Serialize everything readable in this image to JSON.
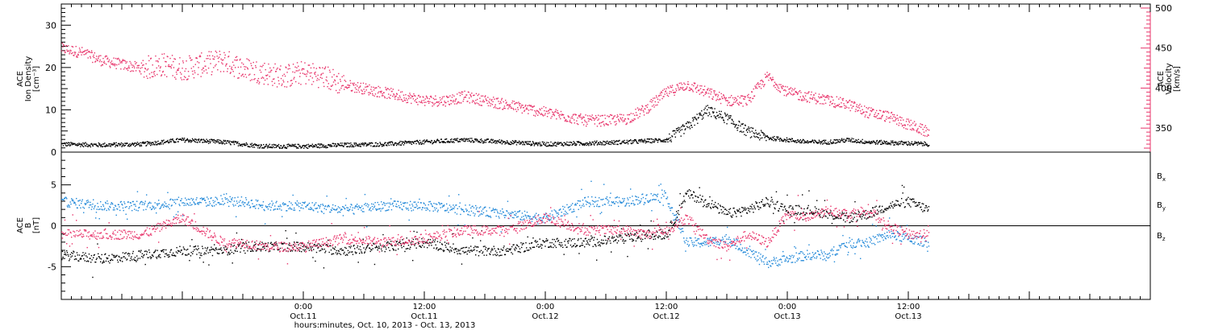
{
  "x_axis": {
    "title": "hours:minutes, Oct. 10, 2013 - Oct. 13, 2013",
    "ticks": [
      {
        "hour": 24,
        "time": "0:00",
        "date": "Oct.11"
      },
      {
        "hour": 36,
        "time": "12:00",
        "date": "Oct.11"
      },
      {
        "hour": 48,
        "time": "0:00",
        "date": "Oct.12"
      },
      {
        "hour": 60,
        "time": "12:00",
        "date": "Oct.12"
      },
      {
        "hour": 72,
        "time": "0:00",
        "date": "Oct.13"
      },
      {
        "hour": 84,
        "time": "12:00",
        "date": "Oct.13"
      }
    ]
  },
  "colors": {
    "density": "#000000",
    "velocity": "#e8336a",
    "bx": "#000000",
    "by": "#1f87d8",
    "bz": "#e8336a",
    "axis": "#000000"
  },
  "chart_data": [
    {
      "type": "scatter",
      "panel": "plasma",
      "ylabel_left": [
        "ACE",
        "Ion Density",
        "[cm⁻³]"
      ],
      "ylabel_right": [
        "ACE",
        "Velocity",
        "[km/s]"
      ],
      "ylim_left": [
        0,
        35
      ],
      "ylim_right": [
        320,
        505
      ],
      "yticks_left": [
        0,
        10,
        20,
        30
      ],
      "yticks_right": [
        350,
        400,
        450,
        500
      ],
      "xlim_hours": [
        0,
        108
      ],
      "series": [
        {
          "axis": "left",
          "x": [
            0,
            4,
            8,
            12,
            16,
            18,
            20,
            24,
            28,
            32,
            36,
            40,
            44,
            48,
            52,
            56,
            60,
            62,
            64,
            66,
            68,
            70,
            72,
            74,
            76,
            78,
            80,
            84,
            86
          ],
          "y": [
            2,
            1.8,
            2,
            3,
            2.5,
            2,
            1.5,
            1.5,
            1.8,
            2,
            2.5,
            3,
            2.5,
            2,
            2.2,
            2.5,
            3,
            6,
            10,
            8,
            5,
            3.5,
            3,
            2.5,
            2.5,
            3,
            2.5,
            2.2,
            2
          ]
        },
        {
          "axis": "right",
          "x": [
            0,
            2,
            4,
            6,
            8,
            10,
            12,
            14,
            16,
            18,
            20,
            22,
            24,
            26,
            28,
            30,
            32,
            34,
            36,
            38,
            40,
            42,
            44,
            46,
            48,
            50,
            52,
            54,
            56,
            58,
            60,
            62,
            64,
            66,
            68,
            70,
            72,
            74,
            76,
            78,
            80,
            82,
            84,
            86
          ],
          "y": [
            450,
            445,
            435,
            430,
            425,
            430,
            425,
            430,
            435,
            425,
            420,
            415,
            420,
            415,
            405,
            400,
            395,
            390,
            385,
            385,
            390,
            385,
            380,
            375,
            370,
            365,
            360,
            360,
            362,
            375,
            395,
            405,
            395,
            385,
            385,
            415,
            395,
            390,
            385,
            380,
            370,
            365,
            355,
            345
          ]
        }
      ]
    },
    {
      "type": "scatter",
      "panel": "magnetic",
      "ylabel_left": [
        "ACE",
        "B",
        "[nT]"
      ],
      "ylim": [
        -9,
        9
      ],
      "yticks": [
        -5,
        0,
        5
      ],
      "xlim_hours": [
        0,
        108
      ],
      "legend": [
        "Bx",
        "By",
        "Bz"
      ],
      "legend_position": "right",
      "series": [
        {
          "name": "Bx",
          "x": [
            0,
            4,
            8,
            12,
            16,
            18,
            20,
            24,
            28,
            32,
            36,
            40,
            44,
            48,
            52,
            56,
            58,
            60,
            62,
            64,
            66,
            68,
            70,
            72,
            74,
            76,
            78,
            80,
            82,
            84,
            86
          ],
          "y": [
            -3.5,
            -4,
            -3.5,
            -3,
            -3,
            -2.5,
            -2.5,
            -2.5,
            -3,
            -2.5,
            -2,
            -3,
            -3,
            -2,
            -2,
            -1.5,
            -1,
            -1,
            4,
            3,
            1.5,
            2,
            3,
            2,
            2,
            1.5,
            1,
            1.5,
            2.5,
            3,
            2
          ]
        },
        {
          "name": "By",
          "x": [
            0,
            4,
            8,
            12,
            16,
            18,
            20,
            24,
            28,
            32,
            36,
            40,
            44,
            48,
            52,
            56,
            58,
            60,
            62,
            64,
            66,
            68,
            70,
            72,
            74,
            76,
            78,
            80,
            82,
            84,
            86
          ],
          "y": [
            3,
            2.5,
            2.5,
            3,
            3,
            3,
            2.5,
            2.5,
            2,
            2.5,
            2.5,
            2,
            1.5,
            1,
            3,
            3,
            3.5,
            3.5,
            -2,
            -2,
            -1.5,
            -3,
            -4.5,
            -4,
            -3.5,
            -3.5,
            -2,
            -2,
            -1,
            -1.5,
            -2
          ]
        },
        {
          "name": "Bz",
          "x": [
            0,
            4,
            8,
            12,
            16,
            18,
            20,
            24,
            28,
            32,
            36,
            40,
            44,
            48,
            52,
            56,
            58,
            60,
            62,
            64,
            66,
            68,
            70,
            72,
            74,
            76,
            78,
            80,
            82,
            84,
            86
          ],
          "y": [
            -1,
            -1,
            -1,
            1,
            -2,
            -2,
            -2.5,
            -2.5,
            -1.5,
            -2,
            -1.5,
            -0.5,
            -0.5,
            1,
            -0.5,
            -0.5,
            -1,
            -0.5,
            1,
            -1.5,
            -2.5,
            -1,
            -2,
            1.5,
            1,
            2,
            1.5,
            2,
            0,
            -1,
            -1
          ]
        }
      ]
    }
  ]
}
